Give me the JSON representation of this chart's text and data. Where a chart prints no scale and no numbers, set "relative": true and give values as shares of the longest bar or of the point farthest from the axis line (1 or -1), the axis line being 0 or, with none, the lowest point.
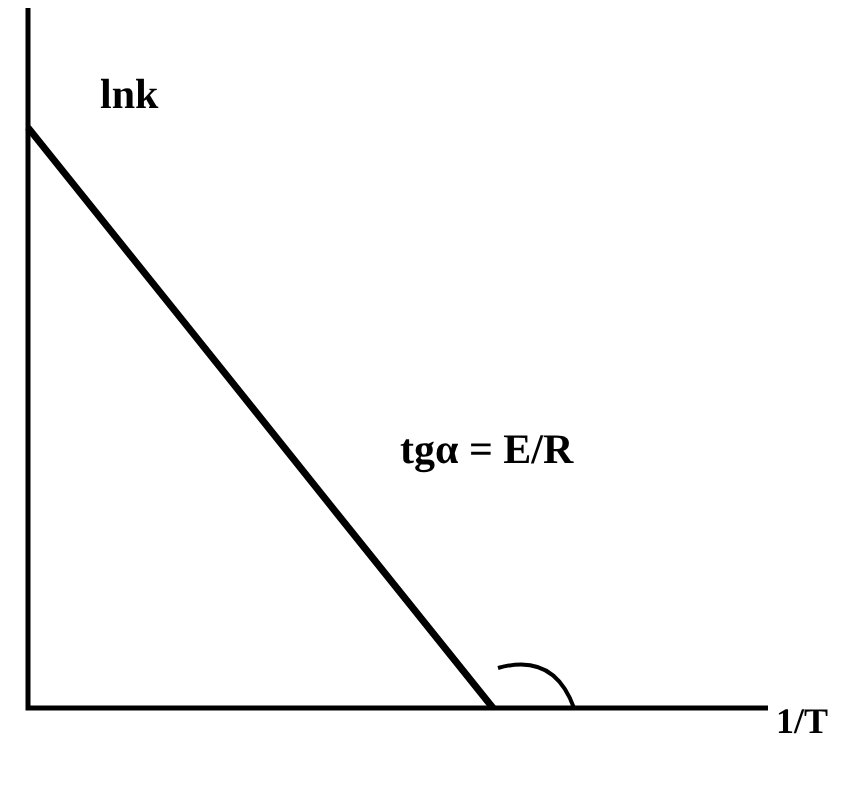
{
  "chart_data": {
    "type": "line",
    "relative": true,
    "categories": [
      null,
      null,
      null,
      null,
      null
    ],
    "series": [
      {
        "color": "#000000",
        "values": [
          1,
          0.667,
          0.333,
          0,
          null
        ]
      }
    ],
    "xlabel": "1/T",
    "ylabel": "lnk",
    "annotations": [
      "tgα = E/R"
    ],
    "grid": false,
    "legend": false,
    "marker": "none",
    "line_style": "solid"
  }
}
